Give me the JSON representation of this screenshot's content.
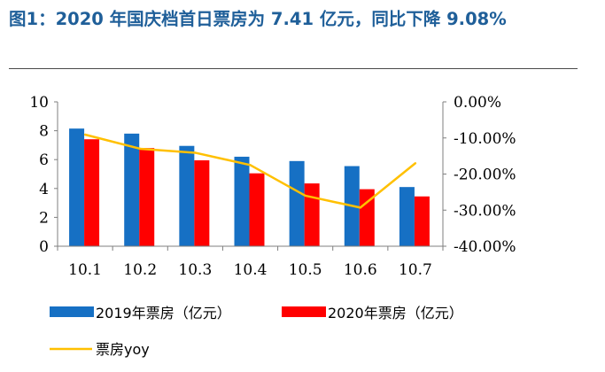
{
  "title": "图1：2020 年国庆档首日票房为 7.41 亿元，同比下降 9.08%",
  "chart_data": {
    "type": "bar",
    "categories": [
      "10.1",
      "10.2",
      "10.3",
      "10.4",
      "10.5",
      "10.6",
      "10.7"
    ],
    "series": [
      {
        "name": "2019年票房（亿元）",
        "type": "bar",
        "axis": "left",
        "color": "#1670c4",
        "values": [
          8.15,
          7.8,
          6.95,
          6.2,
          5.9,
          5.55,
          4.1
        ]
      },
      {
        "name": "2020年票房（亿元）",
        "type": "bar",
        "axis": "left",
        "color": "#ff0000",
        "values": [
          7.41,
          6.8,
          5.95,
          5.05,
          4.35,
          3.95,
          3.45
        ]
      },
      {
        "name": "票房yoy",
        "type": "line",
        "axis": "right",
        "color": "#ffc000",
        "values": [
          -9.08,
          -13.0,
          -14.1,
          -17.5,
          -26.0,
          -29.3,
          -17.0
        ]
      }
    ],
    "ylim_left": [
      0,
      10
    ],
    "yticks_left": [
      "0",
      "2",
      "4",
      "6",
      "8",
      "10"
    ],
    "ylim_right": [
      -40,
      0
    ],
    "yticks_right": [
      "0.00%",
      "-10.00%",
      "-20.00%",
      "-30.00%",
      "-40.00%"
    ],
    "legend_position": "bottom",
    "grid": false
  }
}
